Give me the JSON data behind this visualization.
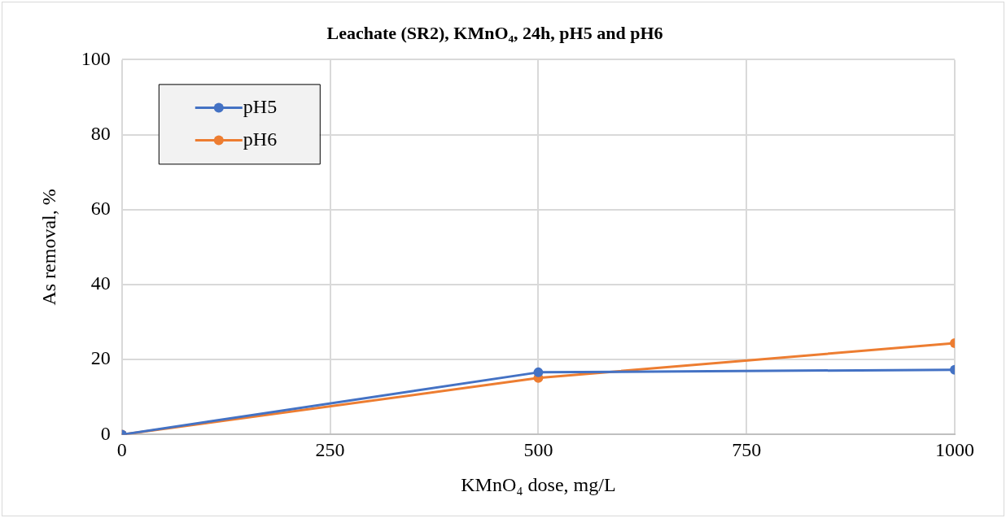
{
  "chart_data": {
    "type": "line",
    "title": "Leachate (SR2), KMnO₄, 24h, pH5 and pH6",
    "xlabel": "KMnO₄ dose, mg/L",
    "ylabel": "As removal, %",
    "x": [
      0,
      500,
      1000
    ],
    "series": [
      {
        "name": "pH5",
        "color": "#4472c4",
        "values": [
          0,
          16.6,
          17.3
        ]
      },
      {
        "name": "pH6",
        "color": "#ed7d31",
        "values": [
          0,
          15.1,
          24.4
        ]
      }
    ],
    "xlim": [
      0,
      1000
    ],
    "xticks": [
      0,
      250,
      500,
      750,
      1000
    ],
    "ylim": [
      0,
      100
    ],
    "yticks": [
      0,
      20,
      40,
      60,
      80,
      100
    ],
    "grid": true,
    "legend": "top left",
    "marker": "circle",
    "line_style": "solid"
  }
}
